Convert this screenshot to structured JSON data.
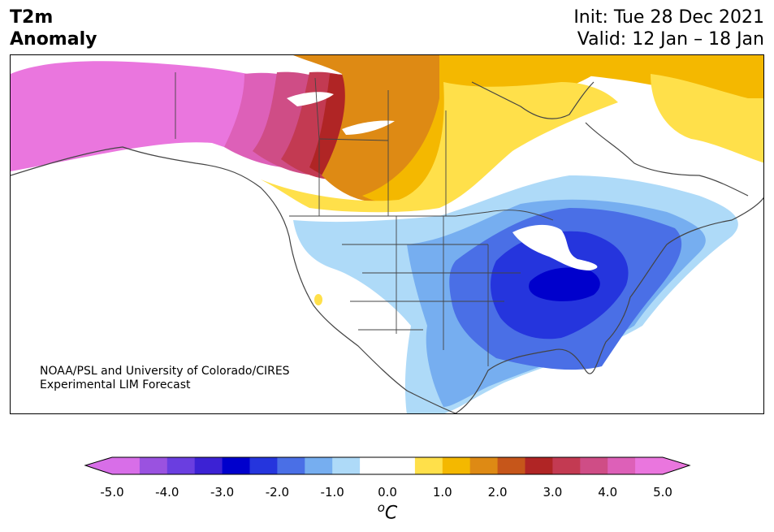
{
  "title": {
    "line1": "T2m",
    "line2": "Anomaly",
    "init": "Init: Tue 28 Dec 2021",
    "valid": "Valid: 12 Jan – 18 Jan"
  },
  "credit": {
    "line1": "NOAA/PSL and University of Colorado/CIRES",
    "line2": "Experimental LIM Forecast"
  },
  "colorbar": {
    "unit_sup": "o",
    "unit": "C",
    "ticks": [
      "-5.0",
      "-4.0",
      "-3.0",
      "-2.0",
      "-1.0",
      "0.0",
      "1.0",
      "2.0",
      "3.0",
      "4.0",
      "5.0"
    ],
    "colors": [
      "#d86ee8",
      "#9a52e0",
      "#6a3ee0",
      "#3c22d4",
      "#0000cc",
      "#2535dd",
      "#4a6fe6",
      "#76aef0",
      "#aedaf8",
      "#ffffff",
      "#ffffff",
      "#ffe04a",
      "#f4b800",
      "#de8a14",
      "#c6561a",
      "#b02525",
      "#c33a52",
      "#cf4d86",
      "#dd60b8",
      "#ea76de"
    ],
    "under_color": "#d86ee8",
    "over_color": "#ea76de"
  },
  "map": {
    "land_colors": {
      "pink": "#ea76de",
      "magenta": "#dd60b8",
      "rose": "#cf4d86",
      "crimson": "#c33a52",
      "red": "#b02525",
      "rust": "#c6561a",
      "orange": "#de8a14",
      "gold": "#f4b800",
      "yellow": "#ffe04a",
      "lightblue": "#aedaf8",
      "skyblue": "#76aef0",
      "blue": "#4a6fe6",
      "royal": "#2535dd",
      "deepblue": "#0000cc"
    }
  }
}
